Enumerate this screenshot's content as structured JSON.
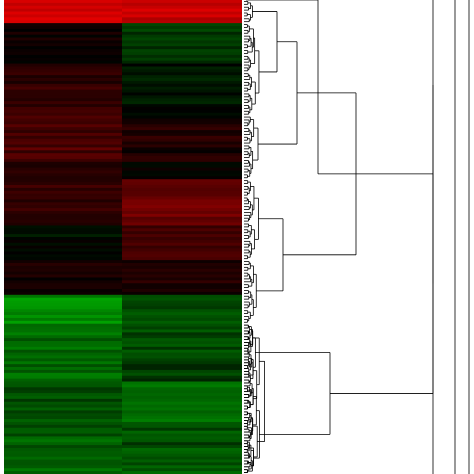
{
  "chart_data": {
    "type": "heatmap",
    "title": "",
    "xlabel": "",
    "ylabel": "",
    "grid": false,
    "legend": "none",
    "colormap": {
      "low": "#00ff00",
      "mid": "#000000",
      "high": "#ff0000"
    },
    "columns": [
      "",
      ""
    ],
    "value_range": [
      -1,
      1
    ],
    "row_blocks": [
      {
        "rows": 8,
        "col1": 0.85,
        "col2": 0.78,
        "jitter": 0.12
      },
      {
        "rows": 14,
        "col1": 0.05,
        "col2": -0.22,
        "jitter": 0.08
      },
      {
        "rows": 18,
        "col1": 0.18,
        "col2": -0.08,
        "jitter": 0.1
      },
      {
        "rows": 16,
        "col1": 0.3,
        "col2": 0.1,
        "jitter": 0.12
      },
      {
        "rows": 6,
        "col1": 0.15,
        "col2": 0.02,
        "jitter": 0.06
      },
      {
        "rows": 16,
        "col1": 0.22,
        "col2": 0.42,
        "jitter": 0.1
      },
      {
        "rows": 12,
        "col1": -0.05,
        "col2": 0.22,
        "jitter": 0.1
      },
      {
        "rows": 12,
        "col1": 0.08,
        "col2": 0.12,
        "jitter": 0.08
      },
      {
        "rows": 10,
        "col1": -0.55,
        "col2": -0.3,
        "jitter": 0.1
      },
      {
        "rows": 20,
        "col1": -0.4,
        "col2": -0.25,
        "jitter": 0.12
      },
      {
        "rows": 16,
        "col1": -0.3,
        "col2": -0.42,
        "jitter": 0.1
      },
      {
        "rows": 16,
        "col1": -0.35,
        "col2": -0.3,
        "jitter": 0.12
      }
    ]
  }
}
